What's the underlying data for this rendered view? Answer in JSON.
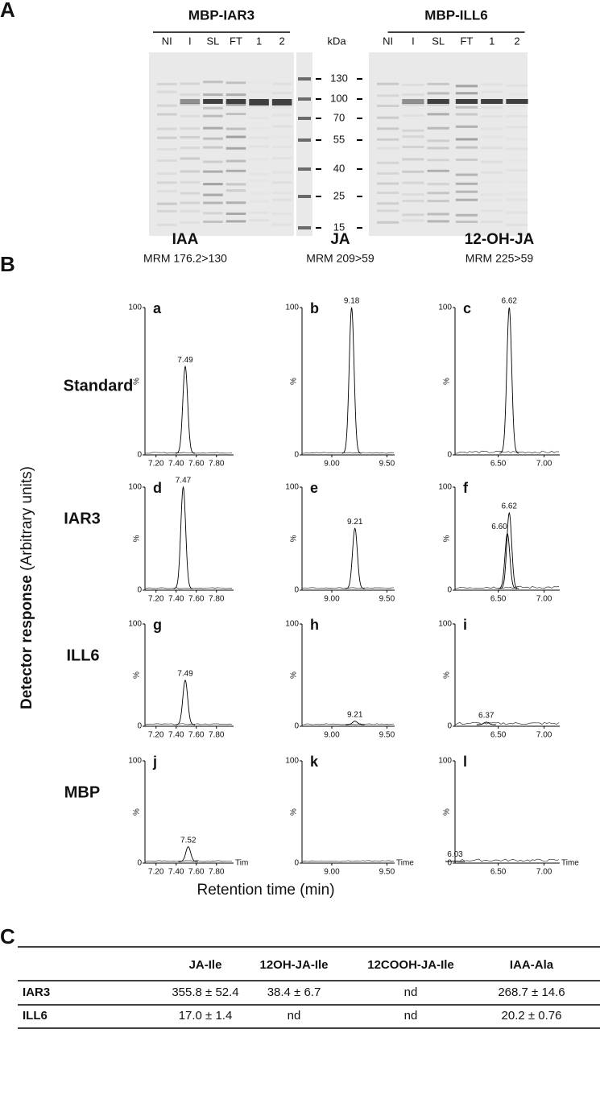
{
  "panel_a": {
    "label": "A",
    "marker_unit": "kDa",
    "markers": [
      130,
      100,
      70,
      55,
      40,
      25,
      15
    ],
    "gels": [
      {
        "title": "MBP-IAR3",
        "lanes": [
          "NI",
          "I",
          "SL",
          "FT",
          "1",
          "2"
        ]
      },
      {
        "title": "MBP-ILL6",
        "lanes": [
          "NI",
          "I",
          "SL",
          "FT",
          "1",
          "2"
        ]
      }
    ]
  },
  "panel_b": {
    "label": "B",
    "rows": [
      "Standard",
      "IAR3",
      "ILL6",
      "MBP"
    ],
    "ylim": [
      0,
      100
    ],
    "yticks": [
      0,
      100
    ],
    "y_unit": "%",
    "y_label_bold": "Detector response",
    "y_label_rest": "(Arbitrary units)",
    "x_label": "Retention time (min)",
    "time_labels": [
      "Tim",
      "Time",
      "Time"
    ],
    "columns": [
      {
        "compound": "IAA",
        "mrm": "MRM 176.2>130",
        "xlim": [
          7.09,
          7.97
        ],
        "xticks": [
          {
            "value": 7.2,
            "label": "7.20"
          },
          {
            "value": 7.4,
            "label": "7.40"
          },
          {
            "value": 7.6,
            "label": "7.60"
          },
          {
            "value": 7.8,
            "label": "7.80"
          }
        ]
      },
      {
        "compound": "JA",
        "mrm": "MRM 209>59",
        "xlim": [
          8.73,
          9.57
        ],
        "xticks": [
          {
            "value": 9.0,
            "label": "9.00"
          },
          {
            "value": 9.5,
            "label": "9.50"
          }
        ]
      },
      {
        "compound": "12-OH-JA",
        "mrm": "MRM 225>59",
        "xlim": [
          6.03,
          7.17
        ],
        "xticks": [
          {
            "value": 6.5,
            "label": "6.50"
          },
          {
            "value": 7.0,
            "label": "7.00"
          }
        ]
      }
    ],
    "panels": [
      {
        "letter": "a",
        "x": [
          7.49
        ],
        "values": [
          60
        ],
        "value_labels": [
          "7.49"
        ]
      },
      {
        "letter": "b",
        "x": [
          9.18
        ],
        "values": [
          100
        ],
        "value_labels": [
          "9.18"
        ]
      },
      {
        "letter": "c",
        "x": [
          6.62
        ],
        "values": [
          100
        ],
        "value_labels": [
          "6.62"
        ]
      },
      {
        "letter": "d",
        "x": [
          7.47
        ],
        "values": [
          100
        ],
        "value_labels": [
          "7.47"
        ]
      },
      {
        "letter": "e",
        "x": [
          9.21
        ],
        "values": [
          60
        ],
        "value_labels": [
          "9.21"
        ]
      },
      {
        "letter": "f",
        "x": [
          6.6,
          6.62
        ],
        "values": [
          55,
          75
        ],
        "value_labels": [
          "6.60",
          "6.62"
        ]
      },
      {
        "letter": "g",
        "x": [
          7.49
        ],
        "values": [
          45
        ],
        "value_labels": [
          "7.49"
        ]
      },
      {
        "letter": "h",
        "x": [
          9.21
        ],
        "values": [
          5
        ],
        "value_labels": [
          "9.21"
        ]
      },
      {
        "letter": "i",
        "x": [
          6.37
        ],
        "values": [
          4
        ],
        "value_labels": [
          "6.37"
        ]
      },
      {
        "letter": "j",
        "x": [
          7.52
        ],
        "values": [
          16
        ],
        "value_labels": [
          "7.52"
        ]
      },
      {
        "letter": "k",
        "x": [],
        "values": [],
        "value_labels": []
      },
      {
        "letter": "l",
        "x": [
          6.03
        ],
        "values": [
          2
        ],
        "value_labels": [
          "6.03"
        ]
      }
    ]
  },
  "panel_c": {
    "label": "C",
    "header": [
      "JA-Ile",
      "12OH-JA-Ile",
      "12COOH-JA-Ile",
      "IAA-Ala"
    ],
    "rows": [
      {
        "name": "IAR3",
        "cells": [
          "355.8 ± 52.4",
          "38.4 ± 6.7",
          "nd",
          "268.7 ± 14.6"
        ]
      },
      {
        "name": "ILL6",
        "cells": [
          "17.0 ± 1.4",
          "nd",
          "nd",
          "20.2 ± 0.76"
        ]
      }
    ]
  }
}
